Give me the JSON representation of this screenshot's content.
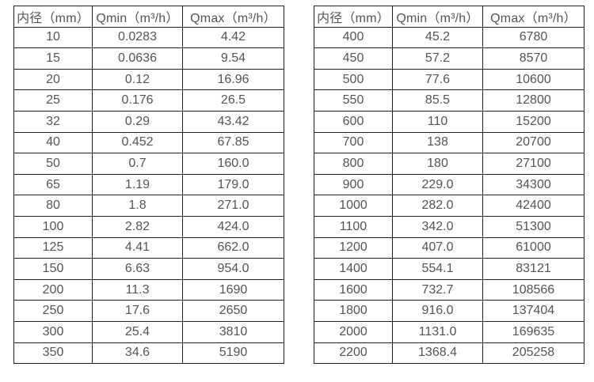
{
  "colors": {
    "background": "#ffffff",
    "border": "#1f1f1f",
    "text": "#545454"
  },
  "tables": [
    {
      "name": "flow-table-small-diameters",
      "headers": [
        "内径（mm）",
        "Qmin（m³/h）",
        "Qmax（m³/h）"
      ],
      "rows": [
        [
          "10",
          "0.0283",
          "4.42"
        ],
        [
          "15",
          "0.0636",
          "9.54"
        ],
        [
          "20",
          "0.12",
          "16.96"
        ],
        [
          "25",
          "0.176",
          "26.5"
        ],
        [
          "32",
          "0.29",
          "43.42"
        ],
        [
          "40",
          "0.452",
          "67.85"
        ],
        [
          "50",
          "0.7",
          "160.0"
        ],
        [
          "65",
          "1.19",
          "179.0"
        ],
        [
          "80",
          "1.8",
          "271.0"
        ],
        [
          "100",
          "2.82",
          "424.0"
        ],
        [
          "125",
          "4.41",
          "662.0"
        ],
        [
          "150",
          "6.63",
          "954.0"
        ],
        [
          "200",
          "11.3",
          "1690"
        ],
        [
          "250",
          "17.6",
          "2650"
        ],
        [
          "300",
          "25.4",
          "3810"
        ],
        [
          "350",
          "34.6",
          "5190"
        ]
      ]
    },
    {
      "name": "flow-table-large-diameters",
      "headers": [
        "内径（mm）",
        "Qmin（m³/h）",
        "Qmax（m³/h）"
      ],
      "rows": [
        [
          "400",
          "45.2",
          "6780"
        ],
        [
          "450",
          "57.2",
          "8570"
        ],
        [
          "500",
          "77.6",
          "10600"
        ],
        [
          "550",
          "85.5",
          "12800"
        ],
        [
          "600",
          "110",
          "15200"
        ],
        [
          "700",
          "138",
          "20700"
        ],
        [
          "800",
          "180",
          "27100"
        ],
        [
          "900",
          "229.0",
          "34300"
        ],
        [
          "1000",
          "282.0",
          "42400"
        ],
        [
          "1100",
          "342.0",
          "51300"
        ],
        [
          "1200",
          "407.0",
          "61000"
        ],
        [
          "1400",
          "554.1",
          "83121"
        ],
        [
          "1600",
          "732.7",
          "108566"
        ],
        [
          "1800",
          "916.0",
          "137404"
        ],
        [
          "2000",
          "1131.0",
          "169635"
        ],
        [
          "2200",
          "1368.4",
          "205258"
        ]
      ]
    }
  ]
}
